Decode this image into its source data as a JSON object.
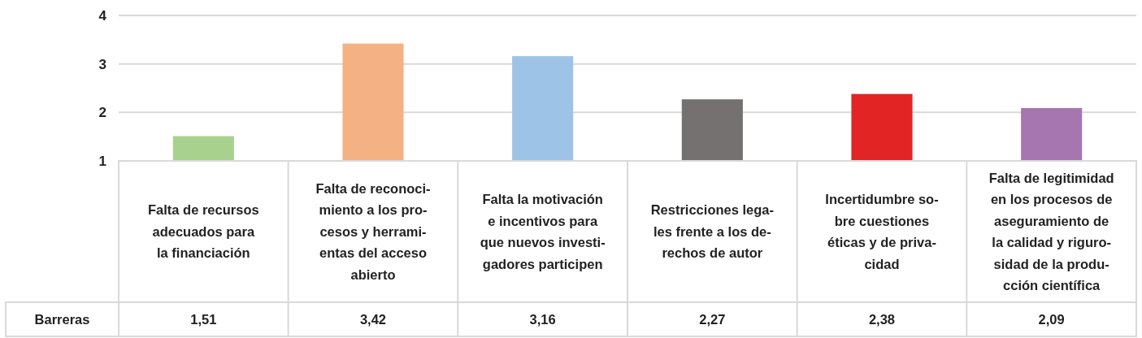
{
  "chart_data": {
    "type": "bar",
    "categories": [
      "Falta de recursos\nadecuados para\nla financiación",
      "Falta de reconoci-\nmiento a los pro-\ncesos y herrami-\nentas del acceso\nabierto",
      "Falta la motivación\ne incentivos para\nque nuevos investi-\ngadores participen",
      "Restricciones lega-\nles frente a los de-\nrechos de autor",
      "Incertidumbre so-\nbre cuestiones\néticas y de priva-\ncidad",
      "Falta de legitimidad\nen los procesos de\naseguramiento de\nla calidad y riguro-\nsidad de la produ-\ncción científica"
    ],
    "series": [
      {
        "name": "Barreras",
        "values": [
          1.51,
          3.42,
          3.16,
          2.27,
          2.38,
          2.09
        ],
        "colors": [
          "#a9d18e",
          "#f4b183",
          "#9dc3e6",
          "#767171",
          "#e32424",
          "#a676b0"
        ],
        "value_labels": [
          "1,51",
          "3,42",
          "3,16",
          "2,27",
          "2,38",
          "2,09"
        ]
      }
    ],
    "ylim": [
      1,
      4
    ],
    "yticks": [
      1,
      2,
      3,
      4
    ],
    "grid": "y",
    "legend": false
  }
}
